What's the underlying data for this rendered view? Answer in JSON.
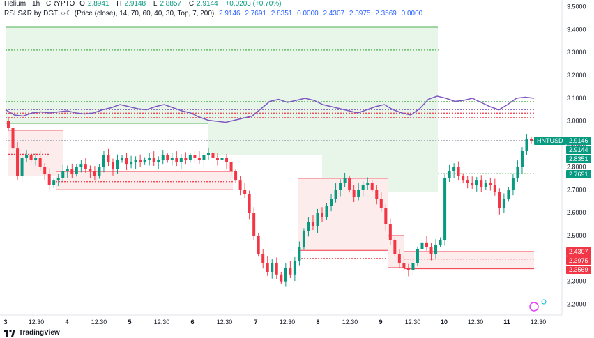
{
  "legend": {
    "title": "Helium · 1h · CRYPTO",
    "open_label": "O",
    "open": "2.8941",
    "high_label": "H",
    "high": "2.9148",
    "low_label": "L",
    "low": "2.8857",
    "close_label": "C",
    "close": "2.9144",
    "change": "+0.0203 (+0.70%)",
    "rsi_label": "RSI S&R by DGT ☼☾ (Price (close), 14, 70, 60, 40, 30, Top, 7, 200)",
    "rsi_values": [
      "2.9146",
      "2.7691",
      "2.8351",
      "0.0000",
      "2.4307",
      "2.3975",
      "2.3569",
      "0.0000"
    ]
  },
  "symbol_tag": "HNTUSD",
  "brand": "TradingView",
  "colors": {
    "up": "#089981",
    "down": "#f23645",
    "rsi": "#7e57c2",
    "zone_green": "#e8f5e9",
    "zone_red": "#fdecec",
    "line_green": "#4caf50"
  },
  "chart_data": {
    "type": "candlestick",
    "ylim": [
      2.15,
      3.52
    ],
    "y_ticks": [
      "3.5000",
      "3.4000",
      "3.3000",
      "3.2000",
      "3.1000",
      "3.0000",
      "2.9000",
      "2.8000",
      "2.7000",
      "2.6000",
      "2.5000",
      "2.4000",
      "2.3000",
      "2.2000"
    ],
    "x_ticks": [
      "3",
      "12:30",
      "4",
      "12:30",
      "5",
      "12:30",
      "6",
      "12:30",
      "7",
      "12:30",
      "8",
      "12:30",
      "9",
      "12:30",
      "10",
      "12:30",
      "11",
      "12:30"
    ],
    "price_tags": [
      {
        "label": "2.9146",
        "value": 2.9146,
        "color": "#089981"
      },
      {
        "label": "2.9144",
        "value": 2.9144,
        "color": "#089981"
      },
      {
        "label": "2.8351",
        "value": 2.8351,
        "color": "#089981"
      },
      {
        "label": "2.7691",
        "value": 2.7691,
        "color": "#089981"
      },
      {
        "label": "2.4307",
        "value": 2.4307,
        "color": "#f23645"
      },
      {
        "label": "2.3975",
        "value": 2.3975,
        "color": "#f23645"
      },
      {
        "label": "2.3569",
        "value": 2.3569,
        "color": "#f23645"
      }
    ],
    "closes": [
      2.97,
      2.88,
      2.76,
      2.84,
      2.85,
      2.83,
      2.84,
      2.8,
      2.77,
      2.72,
      2.74,
      2.75,
      2.78,
      2.79,
      2.77,
      2.8,
      2.81,
      2.79,
      2.78,
      2.76,
      2.8,
      2.85,
      2.82,
      2.79,
      2.83,
      2.84,
      2.81,
      2.82,
      2.83,
      2.82,
      2.83,
      2.84,
      2.82,
      2.83,
      2.85,
      2.83,
      2.84,
      2.82,
      2.84,
      2.83,
      2.85,
      2.84,
      2.83,
      2.85,
      2.86,
      2.84,
      2.83,
      2.84,
      2.82,
      2.78,
      2.74,
      2.7,
      2.68,
      2.6,
      2.5,
      2.42,
      2.38,
      2.34,
      2.38,
      2.33,
      2.3,
      2.36,
      2.33,
      2.39,
      2.45,
      2.52,
      2.56,
      2.54,
      2.6,
      2.58,
      2.63,
      2.66,
      2.7,
      2.73,
      2.75,
      2.7,
      2.67,
      2.7,
      2.72,
      2.73,
      2.7,
      2.66,
      2.62,
      2.55,
      2.48,
      2.42,
      2.38,
      2.36,
      2.35,
      2.38,
      2.44,
      2.47,
      2.45,
      2.42,
      2.46,
      2.48,
      2.75,
      2.78,
      2.8,
      2.76,
      2.74,
      2.73,
      2.72,
      2.74,
      2.71,
      2.73,
      2.72,
      2.69,
      2.62,
      2.66,
      2.7,
      2.75,
      2.8,
      2.87,
      2.92,
      2.9144
    ],
    "rsi_line": [
      55,
      50,
      49,
      52,
      53,
      52,
      53,
      54,
      52,
      51,
      52,
      55,
      57,
      60,
      58,
      56,
      55,
      58,
      60,
      57,
      54,
      52,
      48,
      45,
      44,
      43,
      45,
      47,
      49,
      56,
      63,
      65,
      62,
      64,
      66,
      64,
      60,
      58,
      56,
      54,
      52,
      55,
      58,
      60,
      55,
      52,
      50,
      56,
      65,
      68,
      66,
      63,
      64,
      66,
      62,
      58,
      55,
      60,
      66,
      67,
      66
    ]
  }
}
